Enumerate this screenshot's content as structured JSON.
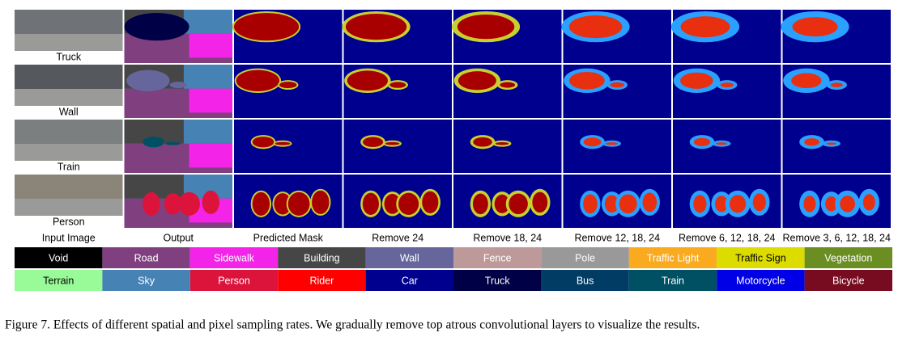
{
  "figure": {
    "rows": [
      "Truck",
      "Wall",
      "Train",
      "Person"
    ],
    "columns": [
      "Input Image",
      "Output",
      "Predicted Mask",
      "Remove 24",
      "Remove 18, 24",
      "Remove 12, 18, 24",
      "Remove 6, 12, 18, 24",
      "Remove 3, 6, 12, 18, 24"
    ],
    "legend": [
      {
        "label": "Void",
        "color": "#000000"
      },
      {
        "label": "Road",
        "color": "#804080"
      },
      {
        "label": "Sidewalk",
        "color": "#f423e8"
      },
      {
        "label": "Building",
        "color": "#464646"
      },
      {
        "label": "Wall",
        "color": "#66669c"
      },
      {
        "label": "Fence",
        "color": "#be9999"
      },
      {
        "label": "Pole",
        "color": "#999999"
      },
      {
        "label": "Traffic Light",
        "color": "#faaa1e"
      },
      {
        "label": "Traffic Sign",
        "color": "#dcdc00"
      },
      {
        "label": "Vegetation",
        "color": "#6b8e23"
      },
      {
        "label": "Terrain",
        "color": "#98fb98"
      },
      {
        "label": "Sky",
        "color": "#4682b4"
      },
      {
        "label": "Person",
        "color": "#dc143c"
      },
      {
        "label": "Rider",
        "color": "#ff0000"
      },
      {
        "label": "Car",
        "color": "#00008e"
      },
      {
        "label": "Truck",
        "color": "#000046"
      },
      {
        "label": "Bus",
        "color": "#003c64"
      },
      {
        "label": "Train",
        "color": "#005064"
      },
      {
        "label": "Motorcycle",
        "color": "#0000e6"
      },
      {
        "label": "Bicycle",
        "color": "#770b20"
      }
    ],
    "caption": "Figure 7. Effects of different spatial and pixel sampling rates. We gradually remove top atrous convolutional layers to visualize the results."
  }
}
